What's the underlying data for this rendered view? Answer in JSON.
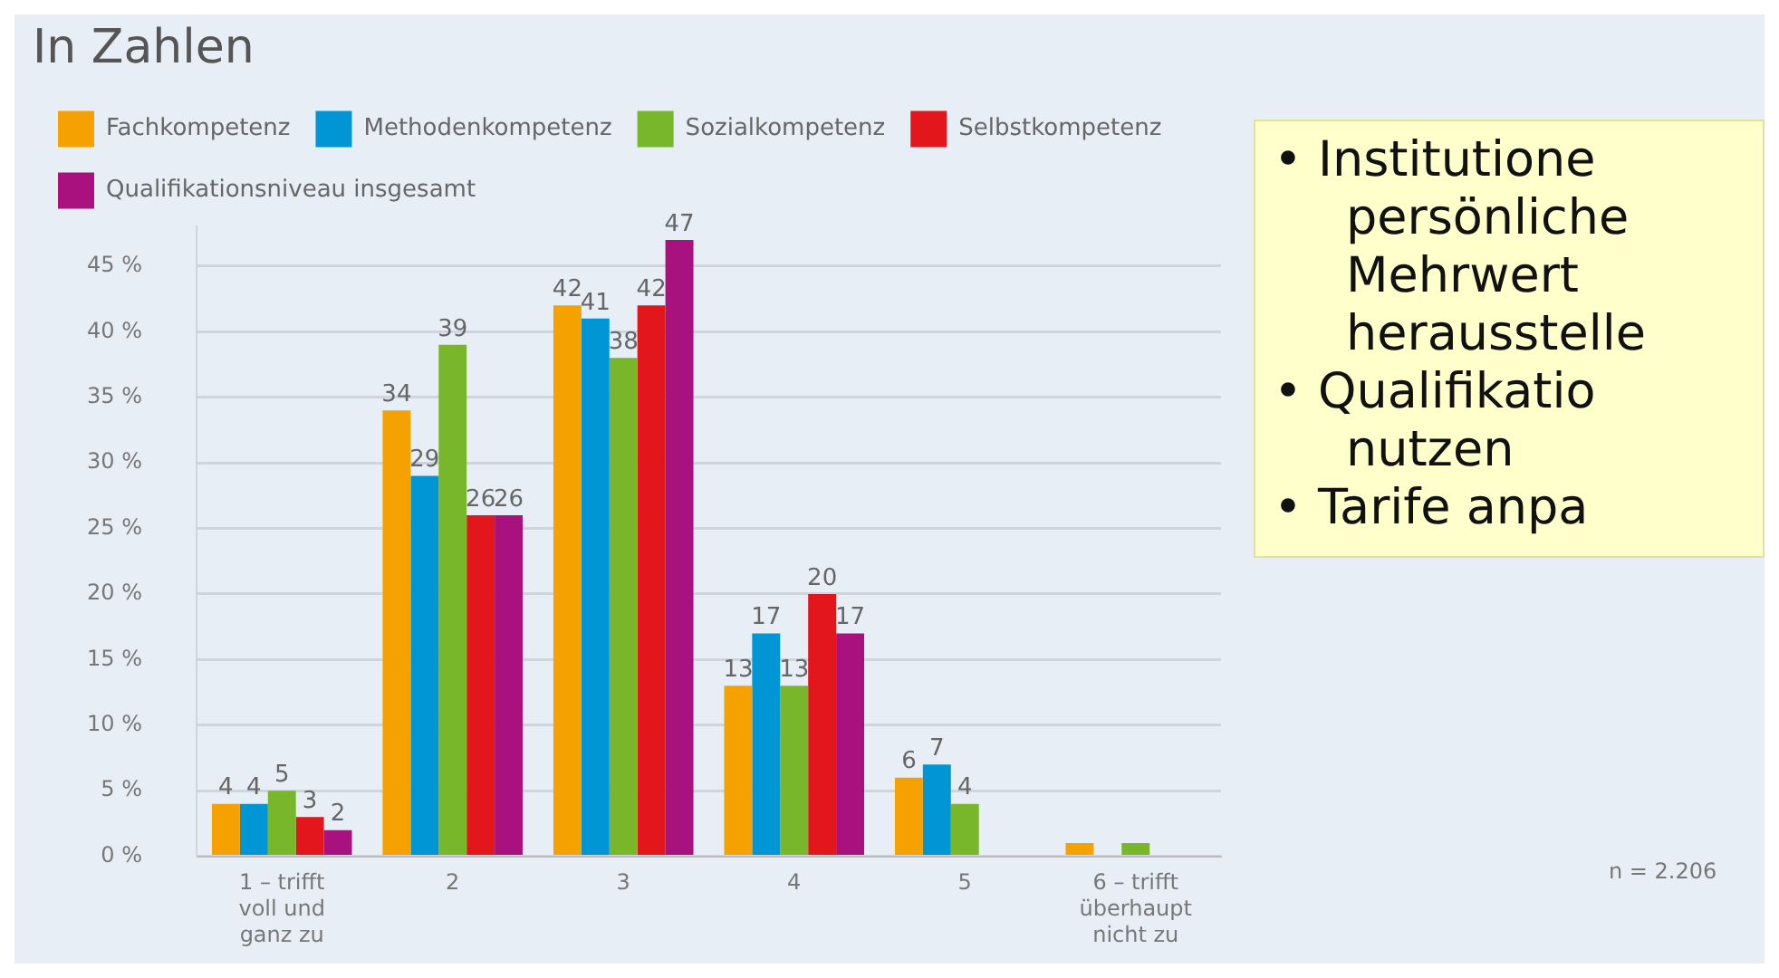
{
  "chart_data": {
    "type": "bar",
    "title": "In Zahlen",
    "categories": [
      "1 – trifft voll und ganz zu",
      "2",
      "3",
      "4",
      "5",
      "6 – trifft überhaupt nicht zu"
    ],
    "series": [
      {
        "name": "Fachkompetenz",
        "color": "#f5a200",
        "values": [
          4,
          34,
          42,
          13,
          6,
          1
        ],
        "value_labels": [
          "4",
          "34",
          "42",
          "13",
          "6",
          null
        ]
      },
      {
        "name": "Methodenkompetenz",
        "color": "#0096d6",
        "values": [
          4,
          29,
          41,
          17,
          7,
          null
        ],
        "value_labels": [
          "4",
          "29",
          "41",
          "17",
          "7",
          null
        ]
      },
      {
        "name": "Sozialkompetenz",
        "color": "#78b62a",
        "values": [
          5,
          39,
          38,
          13,
          4,
          1
        ],
        "value_labels": [
          "5",
          "39",
          "38",
          "13",
          "4",
          null
        ]
      },
      {
        "name": "Selbstkompetenz",
        "color": "#e2161b",
        "values": [
          3,
          26,
          42,
          20,
          null,
          null
        ],
        "value_labels": [
          "3",
          "26",
          "42",
          "20",
          null,
          null
        ]
      },
      {
        "name": "Qualifikationsniveau insgesamt",
        "color": "#a9117f",
        "values": [
          2,
          26,
          47,
          17,
          null,
          null
        ],
        "value_labels": [
          "2",
          "26",
          "47",
          "17",
          null,
          null
        ]
      }
    ],
    "ylim": [
      0,
      48
    ],
    "yticks": [
      {
        "value": 0,
        "label": "0 %"
      },
      {
        "value": 5,
        "label": "5 %"
      },
      {
        "value": 10,
        "label": "10 %"
      },
      {
        "value": 15,
        "label": "15 %"
      },
      {
        "value": 20,
        "label": "20 %"
      },
      {
        "value": 25,
        "label": "25 %"
      },
      {
        "value": 30,
        "label": "30 %"
      },
      {
        "value": 35,
        "label": "35 %"
      },
      {
        "value": 40,
        "label": "40 %"
      },
      {
        "value": 45,
        "label": "45 %"
      }
    ],
    "grid": "y",
    "legend": "top",
    "annotations": [
      "n = 2.206",
      "• Institutione persönliche Mehrwert herausstelle",
      "• Qualifikatio nutzen",
      "• Tarife anpa"
    ]
  }
}
